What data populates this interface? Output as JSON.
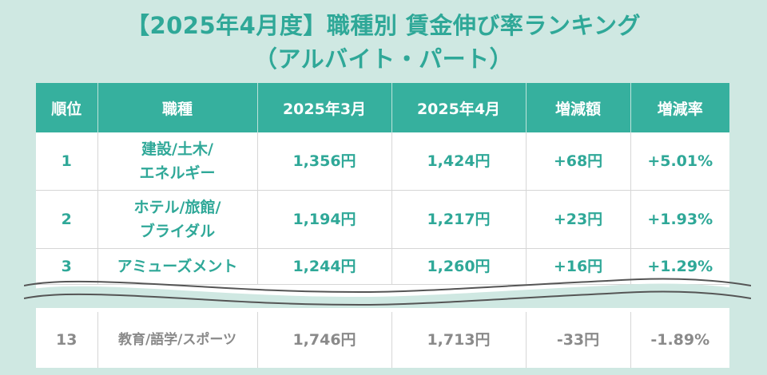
{
  "title_line1": "【2025年4月度】職種別 賃金伸び率ランキング",
  "title_line2": "（アルバイト・パート）",
  "headers": [
    "順位",
    "職種",
    "2025年3月",
    "2025年4月",
    "増減額",
    "増減率"
  ],
  "rows": [
    {
      "rank": "1",
      "job_line1": "建設/土木/",
      "job_line2": "エネルギー",
      "mar": "1,356円",
      "apr": "1,424円",
      "diff": "+68円",
      "rate": "+5.01%"
    },
    {
      "rank": "2",
      "job_line1": "ホテル/旅館/",
      "job_line2": "ブライダル",
      "mar": "1,194円",
      "apr": "1,217円",
      "diff": "+23円",
      "rate": "+1.93%"
    },
    {
      "rank": "3",
      "job_line1": "アミューズメント",
      "job_line2": "",
      "mar": "1,244円",
      "apr": "1,260円",
      "diff": "+16円",
      "rate": "+1.29%"
    },
    {
      "rank": "13",
      "job_line1": "教育/語学/スポーツ",
      "job_line2": "",
      "mar": "1,746円",
      "apr": "1,713円",
      "diff": "-33円",
      "rate": "-1.89%"
    }
  ],
  "colors": {
    "accent": "#36b09e",
    "title": "#2fa898",
    "background": "#cfe8e2",
    "negative_text": "#8a8a8a"
  }
}
